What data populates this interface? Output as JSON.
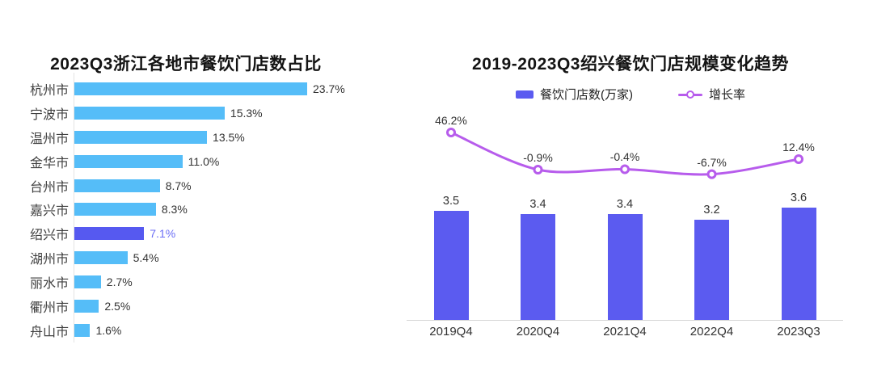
{
  "chart_data": [
    {
      "id": "zhejiang-city-share",
      "type": "bar",
      "orientation": "horizontal",
      "title": "2023Q3浙江各地市餐饮门店数占比",
      "categories": [
        "杭州市",
        "宁波市",
        "温州市",
        "金华市",
        "台州市",
        "嘉兴市",
        "绍兴市",
        "湖州市",
        "丽水市",
        "衢州市",
        "舟山市"
      ],
      "values": [
        23.7,
        15.3,
        13.5,
        11.0,
        8.7,
        8.3,
        7.1,
        5.4,
        2.7,
        2.5,
        1.6
      ],
      "value_labels": [
        "23.7%",
        "15.3%",
        "13.5%",
        "11.0%",
        "8.7%",
        "8.3%",
        "7.1%",
        "5.4%",
        "2.7%",
        "2.5%",
        "1.6%"
      ],
      "highlight_category": "绍兴市",
      "xlim": [
        0,
        25
      ],
      "grid": false,
      "colors": {
        "bar": "#55BDF8",
        "highlight_bar": "#5659F0",
        "highlight_value_text": "#6B6EF5",
        "value_text": "#333333",
        "axis_line": "#e4e4e4"
      }
    },
    {
      "id": "shaoxing-trend",
      "type": "bar+line",
      "title": "2019-2023Q3绍兴餐饮门店规模变化趋势",
      "categories": [
        "2019Q4",
        "2020Q4",
        "2021Q4",
        "2022Q4",
        "2023Q3"
      ],
      "series": [
        {
          "name": "餐饮门店数(万家)",
          "type": "bar",
          "values": [
            3.5,
            3.4,
            3.4,
            3.2,
            3.6
          ],
          "value_labels": [
            "3.5",
            "3.4",
            "3.4",
            "3.2",
            "3.6"
          ],
          "color": "#5B5BF0"
        },
        {
          "name": "增长率",
          "type": "line",
          "values": [
            46.2,
            -0.9,
            -0.4,
            -6.7,
            12.4
          ],
          "value_labels": [
            "46.2%",
            "-0.9%",
            "-0.4%",
            "-6.7%",
            "12.4%"
          ],
          "color": "#B75CEC"
        }
      ],
      "legend_position": "top",
      "grid": false,
      "ylim_bar": [
        0,
        4.3
      ],
      "ylim_line": [
        -25,
        55
      ],
      "colors": {
        "axis_line": "#d6d6d6",
        "value_text": "#333333"
      }
    }
  ]
}
